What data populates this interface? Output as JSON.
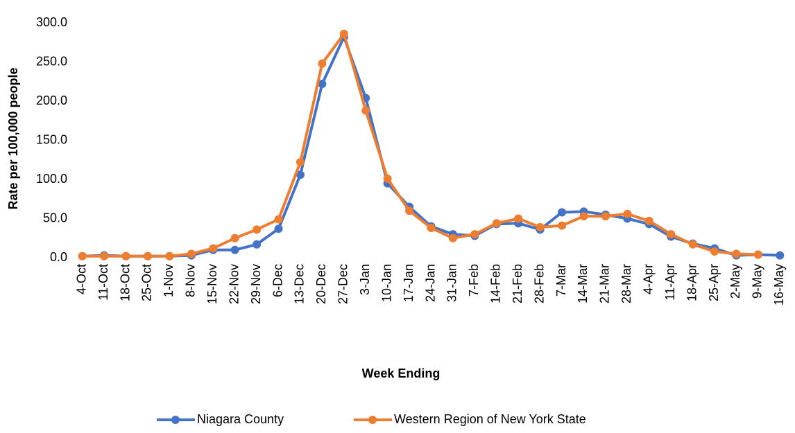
{
  "chart_data": {
    "type": "line",
    "y_label": "Rate per 100,000 people",
    "x_label": "Week Ending",
    "categories": [
      "4-Oct",
      "11-Oct",
      "18-Oct",
      "25-Oct",
      "1-Nov",
      "8-Nov",
      "15-Nov",
      "22-Nov",
      "29-Nov",
      "6-Dec",
      "13-Dec",
      "20-Dec",
      "27-Dec",
      "3-Jan",
      "10-Jan",
      "17-Jan",
      "24-Jan",
      "31-Jan",
      "7-Feb",
      "14-Feb",
      "21-Feb",
      "28-Feb",
      "7-Mar",
      "14-Mar",
      "21-Mar",
      "28-Mar",
      "4-Apr",
      "11-Apr",
      "18-Apr",
      "25-Apr",
      "2-May",
      "9-May",
      "16-May"
    ],
    "series": [
      {
        "name": "Niagara County",
        "color": "#4472c4",
        "values": [
          2,
          3,
          2,
          2,
          2,
          3,
          10,
          10,
          17,
          37,
          106,
          222,
          282,
          204,
          95,
          65,
          40,
          30,
          28,
          43,
          44,
          36,
          58,
          59,
          55,
          50,
          43,
          27,
          18,
          12,
          3,
          4,
          3
        ]
      },
      {
        "name": "Western Region of New York State",
        "color": "#ed7d31",
        "values": [
          2,
          2,
          2,
          2,
          2,
          5,
          12,
          25,
          36,
          49,
          122,
          248,
          286,
          188,
          101,
          60,
          38,
          25,
          30,
          44,
          50,
          39,
          41,
          53,
          53,
          56,
          47,
          30,
          17,
          8,
          5,
          4,
          null
        ]
      }
    ],
    "ylim": [
      0,
      300
    ],
    "yticks": [
      {
        "value": 0,
        "label": "0.0"
      },
      {
        "value": 50,
        "label": "50.0"
      },
      {
        "value": 100,
        "label": "100.0"
      },
      {
        "value": 150,
        "label": "150.0"
      },
      {
        "value": 200,
        "label": "200.0"
      },
      {
        "value": 250,
        "label": "250.0"
      },
      {
        "value": 300,
        "label": "300.0"
      }
    ],
    "grid": false,
    "legend": "bottom"
  }
}
